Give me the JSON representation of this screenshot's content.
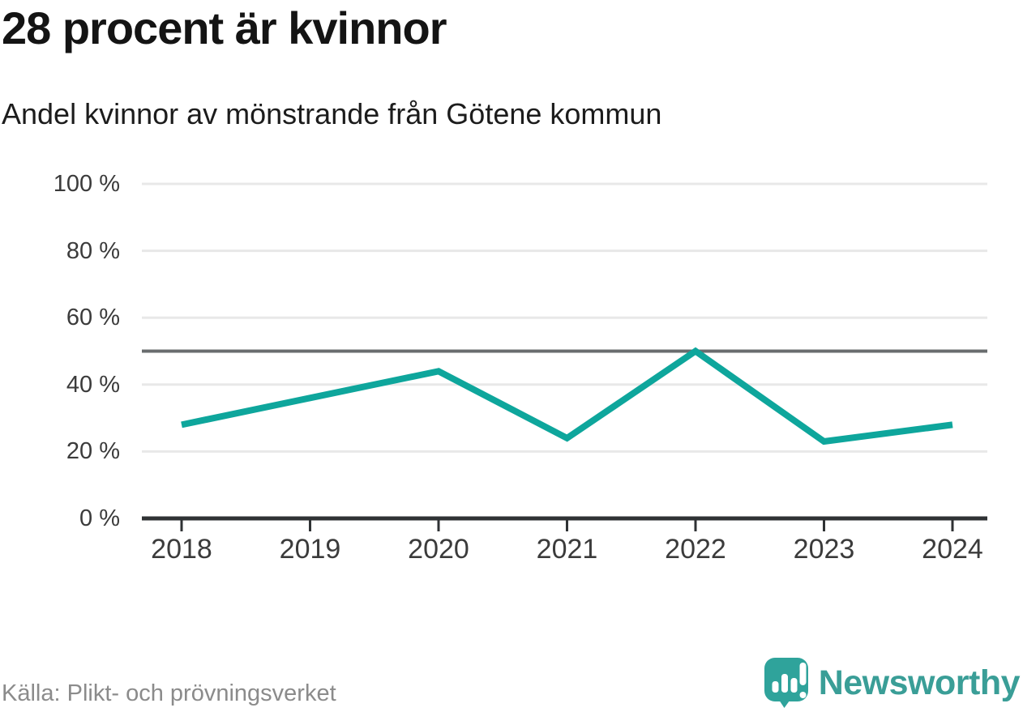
{
  "header": {
    "title": "28 procent är kvinnor",
    "subtitle": "Andel kvinnor av mönstrande från Götene kommun"
  },
  "chart_data": {
    "type": "line",
    "title": "28 procent är kvinnor",
    "subtitle": "Andel kvinnor av mönstrande från Götene kommun",
    "categories": [
      "2018",
      "2019",
      "2020",
      "2021",
      "2022",
      "2023",
      "2024"
    ],
    "series": [
      {
        "name": "Andel kvinnor av mönstrande",
        "values": [
          28,
          36,
          44,
          24,
          50,
          23,
          28
        ]
      }
    ],
    "unit": "%",
    "ylim": [
      0,
      100
    ],
    "y_ticks": [
      0,
      20,
      40,
      60,
      80,
      100
    ],
    "y_tick_labels": [
      "0 %",
      "20 %",
      "40 %",
      "60 %",
      "80 %",
      "100 %"
    ],
    "reference_line": 50,
    "grid": "horizontal",
    "legend": "none",
    "line_color": "#0ea69c",
    "grid_color": "#e8e8e8",
    "reference_line_color": "#696c6e",
    "axis_color": "#2f3234"
  },
  "footer": {
    "source": "Källa: Plikt- och prövningsverket",
    "brand": "Newsworthy",
    "brand_icon_color": "#2fa39b",
    "brand_text_color": "#3a9e97"
  }
}
